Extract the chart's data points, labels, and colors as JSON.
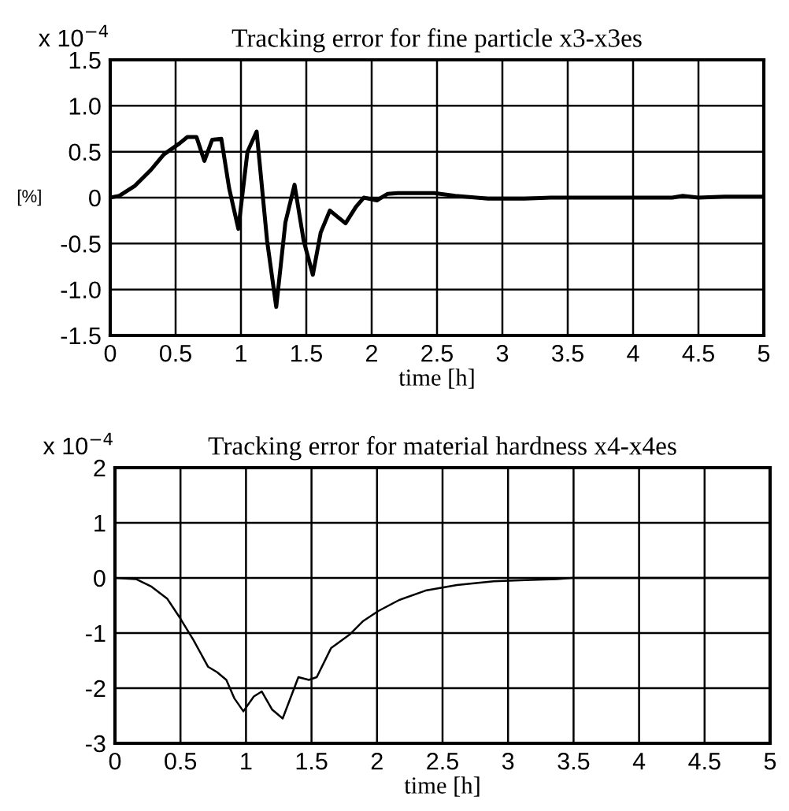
{
  "chart_data": [
    {
      "type": "line",
      "title": "Tracking error for fine particle x3-x3es",
      "xlabel": "time [h]",
      "ylabel": "[%]",
      "annotations": [
        "x 10$^{−4}$"
      ],
      "xlim": [
        0,
        5
      ],
      "xticks": [
        0,
        0.5,
        1,
        1.5,
        2,
        2.5,
        3,
        3.5,
        4,
        4.5,
        5
      ],
      "ylim": [
        -1.5,
        1.5
      ],
      "yticks": [
        {
          "value": -1.5,
          "label": "-1.5"
        },
        {
          "value": -1.0,
          "label": "-1.0"
        },
        {
          "value": -0.5,
          "label": "-0.5"
        },
        0,
        {
          "value": 0.5,
          "label": "0.5"
        },
        {
          "value": 1.0,
          "label": "1.0"
        },
        {
          "value": 1.5,
          "label": "1.5"
        }
      ],
      "grid": true,
      "legend": false,
      "series": [
        {
          "color": "#000000",
          "x": [
            0,
            0.07,
            0.19,
            0.31,
            0.41,
            0.53,
            0.59,
            0.66,
            0.72,
            0.78,
            0.85,
            0.91,
            0.98,
            1.05,
            1.12,
            1.2,
            1.27,
            1.34,
            1.41,
            1.48,
            1.55,
            1.61,
            1.68,
            1.8,
            1.88,
            1.94,
            2.04,
            2.12,
            2.2,
            2.48,
            2.64,
            2.89,
            3.17,
            3.37,
            4.3,
            4.38,
            4.5,
            4.7,
            5
          ],
          "values": [
            0,
            0.02,
            0.13,
            0.3,
            0.47,
            0.59,
            0.66,
            0.66,
            0.4,
            0.63,
            0.64,
            0.1,
            -0.34,
            0.5,
            0.72,
            -0.47,
            -1.19,
            -0.27,
            0.14,
            -0.47,
            -0.84,
            -0.38,
            -0.14,
            -0.28,
            -0.1,
            0,
            -0.03,
            0.04,
            0.05,
            0.05,
            0.02,
            -0.01,
            -0.01,
            0,
            0,
            0.02,
            0,
            0.01,
            0.01
          ]
        }
      ]
    },
    {
      "type": "line",
      "title": "Tracking error for material hardness x4-x4es",
      "xlabel": "time [h]",
      "annotations": [
        "x 10$^{−4}$"
      ],
      "xlim": [
        0,
        5
      ],
      "xticks": [
        0,
        0.5,
        1,
        1.5,
        2,
        2.5,
        3,
        3.5,
        4,
        4.5,
        5
      ],
      "ylim": [
        -3,
        2
      ],
      "yticks": [
        -3,
        -2,
        -1,
        0,
        1,
        2
      ],
      "grid": true,
      "legend": false,
      "series": [
        {
          "color": "#000000",
          "x": [
            0,
            0.16,
            0.28,
            0.4,
            0.5,
            0.6,
            0.71,
            0.78,
            0.85,
            0.91,
            0.98,
            1.06,
            1.12,
            1.2,
            1.28,
            1.4,
            1.48,
            1.54,
            1.65,
            1.79,
            1.89,
            2.01,
            2.17,
            2.37,
            2.61,
            2.89,
            3.13,
            3.37,
            3.49,
            5
          ],
          "values": [
            0,
            -0.02,
            -0.16,
            -0.38,
            -0.74,
            -1.13,
            -1.61,
            -1.71,
            -1.85,
            -2.18,
            -2.42,
            -2.15,
            -2.06,
            -2.39,
            -2.55,
            -1.8,
            -1.85,
            -1.8,
            -1.27,
            -1.03,
            -0.79,
            -0.6,
            -0.4,
            -0.23,
            -0.13,
            -0.06,
            -0.04,
            -0.02,
            0,
            0
          ]
        }
      ]
    }
  ]
}
